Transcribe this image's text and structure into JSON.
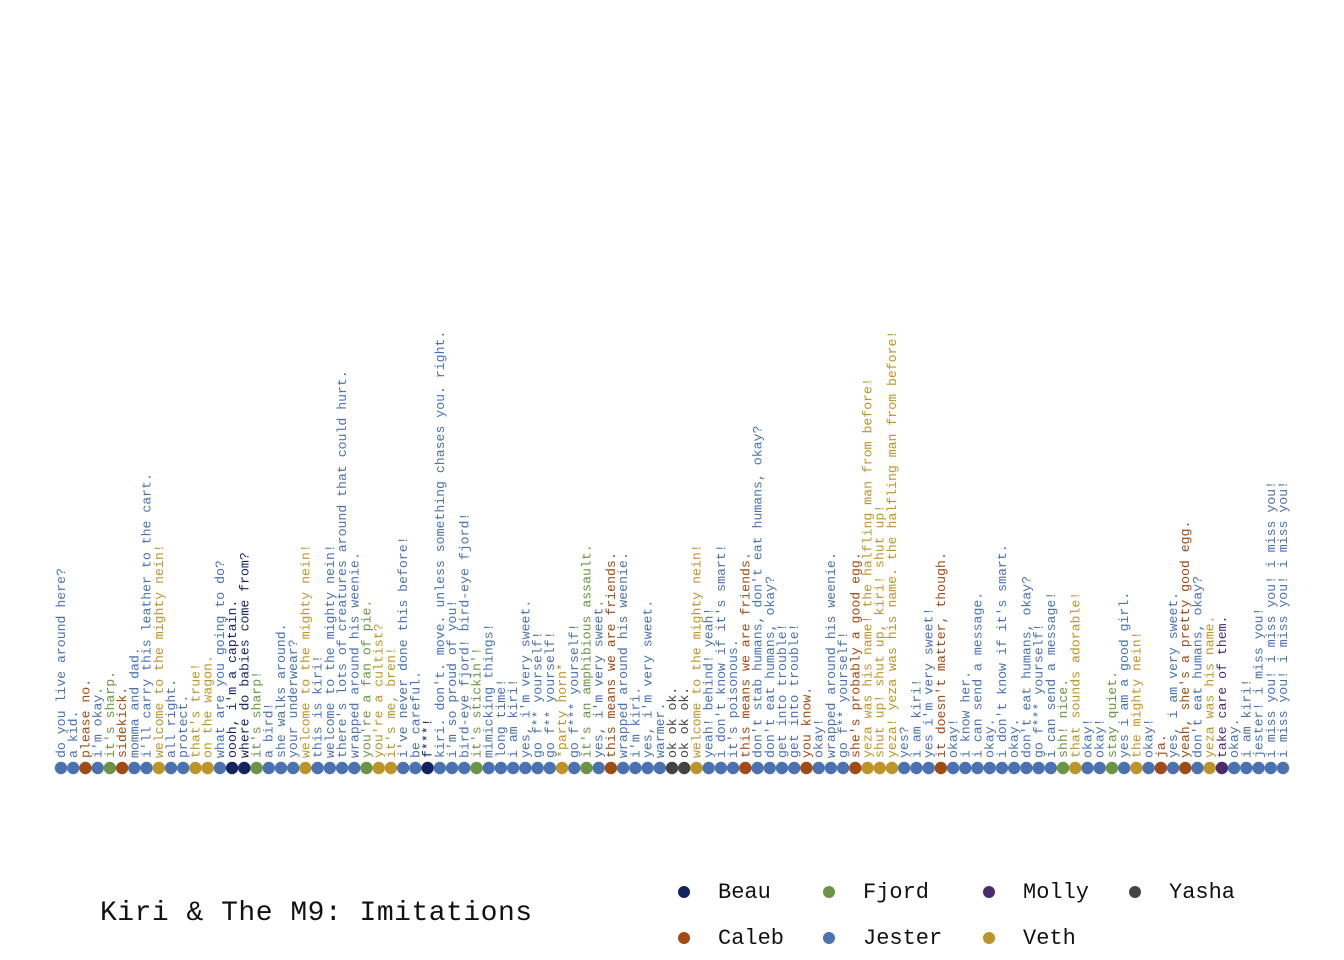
{
  "chart_data": {
    "type": "scatter",
    "title": "Kiri & The M9: Imitations",
    "colors": {
      "Beau": "#14235e",
      "Caleb": "#a04a14",
      "Fjord": "#6b9544",
      "Jester": "#4a72b0",
      "Molly": "#4b2b6b",
      "Veth": "#bc9428",
      "Yasha": "#444444"
    },
    "legend": [
      "Beau",
      "Fjord",
      "Molly",
      "Yasha",
      "Caleb",
      "Jester",
      "Veth"
    ],
    "points": [
      {
        "s": "Jester",
        "t": "do you live around here?"
      },
      {
        "s": "Jester",
        "t": "a kid."
      },
      {
        "s": "Caleb",
        "t": "please no."
      },
      {
        "s": "Jester",
        "t": "i'm okay."
      },
      {
        "s": "Fjord",
        "t": "it's sharp."
      },
      {
        "s": "Caleb",
        "t": "sidekick."
      },
      {
        "s": "Jester",
        "t": "momma and dad."
      },
      {
        "s": "Jester",
        "t": "i'll carry this leather to the cart."
      },
      {
        "s": "Veth",
        "t": "welcome to the mighty nein!"
      },
      {
        "s": "Jester",
        "t": "all right."
      },
      {
        "s": "Jester",
        "t": "protect."
      },
      {
        "s": "Veth",
        "t": "that's true!"
      },
      {
        "s": "Veth",
        "t": "on the wagon."
      },
      {
        "s": "Jester",
        "t": "what are you going to do?"
      },
      {
        "s": "Beau",
        "t": "oooh, i'm a captain."
      },
      {
        "s": "Beau",
        "t": "where do babies come from?"
      },
      {
        "s": "Fjord",
        "t": "it's sharp!"
      },
      {
        "s": "Jester",
        "t": "a bird!"
      },
      {
        "s": "Jester",
        "t": "she walks around."
      },
      {
        "s": "Jester",
        "t": "your underwear?"
      },
      {
        "s": "Veth",
        "t": "welcome to the mighty nein!"
      },
      {
        "s": "Jester",
        "t": "this is kiri!"
      },
      {
        "s": "Jester",
        "t": "welcome to the mighty nein!"
      },
      {
        "s": "Jester",
        "t": "there's lots of creatures around that could hurt."
      },
      {
        "s": "Jester",
        "t": "wrapped around his weenie."
      },
      {
        "s": "Fjord",
        "t": "you're a fan of pie."
      },
      {
        "s": "Veth",
        "t": "you're a cultist?"
      },
      {
        "s": "Veth",
        "t": "it's me, bren!"
      },
      {
        "s": "Jester",
        "t": "i've never done this before!"
      },
      {
        "s": "Jester",
        "t": "be careful."
      },
      {
        "s": "Beau",
        "t": "f***!"
      },
      {
        "s": "Jester",
        "t": "kiri. don't. move. unless something chases you. right."
      },
      {
        "s": "Jester",
        "t": "i'm so proud of you!"
      },
      {
        "s": "Jester",
        "t": "bird-eye fjord! bird-eye fjord!"
      },
      {
        "s": "Fjord",
        "t": "it's stickin'!"
      },
      {
        "s": "Jester",
        "t": "mimicking things!"
      },
      {
        "s": "Jester",
        "t": "long time!"
      },
      {
        "s": "Jester",
        "t": "i am kiri!"
      },
      {
        "s": "Jester",
        "t": "yes, i'm very sweet."
      },
      {
        "s": "Jester",
        "t": "go f** yourself!"
      },
      {
        "s": "Jester",
        "t": "go f** yourself!"
      },
      {
        "s": "Veth",
        "t": "*party horn*"
      },
      {
        "s": "Jester",
        "t": "go f*** yourself!"
      },
      {
        "s": "Fjord",
        "t": "it's an amphibious assault."
      },
      {
        "s": "Jester",
        "t": "yes, i'm very sweet."
      },
      {
        "s": "Caleb",
        "t": "this means we are friends."
      },
      {
        "s": "Jester",
        "t": "wrapped around his weenie."
      },
      {
        "s": "Jester",
        "t": "i'm kiri."
      },
      {
        "s": "Jester",
        "t": "yes, i'm very sweet."
      },
      {
        "s": "Jester",
        "t": "warmer."
      },
      {
        "s": "Yasha",
        "t": "ok ok ok."
      },
      {
        "s": "Yasha",
        "t": "ok ok ok."
      },
      {
        "s": "Veth",
        "t": "welcome to the mighty nein!"
      },
      {
        "s": "Jester",
        "t": "yeah! behind! yeah!"
      },
      {
        "s": "Jester",
        "t": "i don't know if it's smart!"
      },
      {
        "s": "Jester",
        "t": "it's poisonous."
      },
      {
        "s": "Caleb",
        "t": "this means we are friends."
      },
      {
        "s": "Jester",
        "t": "don't stab humans, don't eat humans, okay?"
      },
      {
        "s": "Jester",
        "t": "don't eat humans, okay?"
      },
      {
        "s": "Jester",
        "t": "get into trouble!"
      },
      {
        "s": "Jester",
        "t": "get into trouble!"
      },
      {
        "s": "Caleb",
        "t": "you know."
      },
      {
        "s": "Jester",
        "t": "okay!"
      },
      {
        "s": "Jester",
        "t": "wrapped around his weenie."
      },
      {
        "s": "Jester",
        "t": "go f** yourself!"
      },
      {
        "s": "Caleb",
        "t": "she's probably a good egg."
      },
      {
        "s": "Veth",
        "t": "yeza was his name! the halfling man from before!"
      },
      {
        "s": "Veth",
        "t": "shut up! shut up, kiri! shut up!"
      },
      {
        "s": "Veth",
        "t": "yeza! yeza was his name. the halfling man from before!"
      },
      {
        "s": "Jester",
        "t": "yes?"
      },
      {
        "s": "Jester",
        "t": "i am kiri!"
      },
      {
        "s": "Jester",
        "t": "yes i'm very sweet!"
      },
      {
        "s": "Caleb",
        "t": "it doesn't matter, though."
      },
      {
        "s": "Jester",
        "t": "okay!"
      },
      {
        "s": "Jester",
        "t": "i know her."
      },
      {
        "s": "Jester",
        "t": "i can send a message."
      },
      {
        "s": "Jester",
        "t": "okay."
      },
      {
        "s": "Jester",
        "t": "i don't know if it's smart."
      },
      {
        "s": "Jester",
        "t": "okay."
      },
      {
        "s": "Jester",
        "t": "don't eat humans, okay?"
      },
      {
        "s": "Jester",
        "t": "go f*** yourself!"
      },
      {
        "s": "Jester",
        "t": "i can send a message!"
      },
      {
        "s": "Fjord",
        "t": "shh! nice."
      },
      {
        "s": "Veth",
        "t": "that sounds adorable!"
      },
      {
        "s": "Jester",
        "t": "okay!"
      },
      {
        "s": "Jester",
        "t": "okay!"
      },
      {
        "s": "Fjord",
        "t": "stay quiet."
      },
      {
        "s": "Jester",
        "t": "yes i am a good girl."
      },
      {
        "s": "Veth",
        "t": "the mighty nein!"
      },
      {
        "s": "Jester",
        "t": "okay!"
      },
      {
        "s": "Caleb",
        "t": "ja."
      },
      {
        "s": "Jester",
        "t": "yes, i am very sweet."
      },
      {
        "s": "Caleb",
        "t": "yeah, she's a pretty good egg."
      },
      {
        "s": "Jester",
        "t": "don't eat humans, okay?"
      },
      {
        "s": "Veth",
        "t": "yeza was his name."
      },
      {
        "s": "Molly",
        "t": "take care of them."
      },
      {
        "s": "Jester",
        "t": "okay."
      },
      {
        "s": "Jester",
        "t": "i am kiri!"
      },
      {
        "s": "Jester",
        "t": "jester! i miss you!"
      },
      {
        "s": "Jester",
        "t": "i miss you! i miss you! i miss you!"
      },
      {
        "s": "Jester",
        "t": "i miss you! i miss you! i miss you!"
      }
    ]
  }
}
